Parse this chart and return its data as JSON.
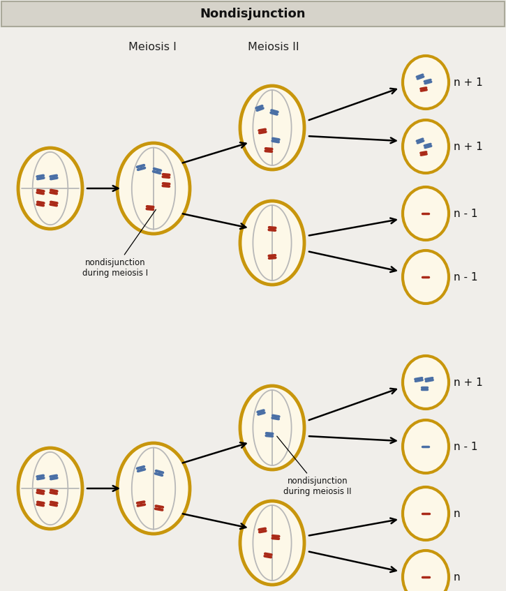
{
  "title": "Nondisjunction",
  "title_bg": "#d6d3ca",
  "title_border": "#aaa99a",
  "cell_bg": "#fdf8e8",
  "cell_border": "#c8960c",
  "blue_chr": "#4a6fa5",
  "red_chr": "#aa2a18",
  "spindle_color": "#b8b8b8",
  "page_bg": "#f0eeea",
  "label_meiosis1": "Meiosis I",
  "label_meiosis2": "Meiosis II",
  "label1": "nondisjunction\nduring meiosis I",
  "label2": "nondisjunction\nduring meiosis II",
  "outcomes_top": [
    "n + 1",
    "n + 1",
    "n - 1",
    "n - 1"
  ],
  "outcomes_bot": [
    "n + 1",
    "n - 1",
    "n",
    "n"
  ],
  "figw": 7.25,
  "figh": 8.47,
  "dpi": 100
}
